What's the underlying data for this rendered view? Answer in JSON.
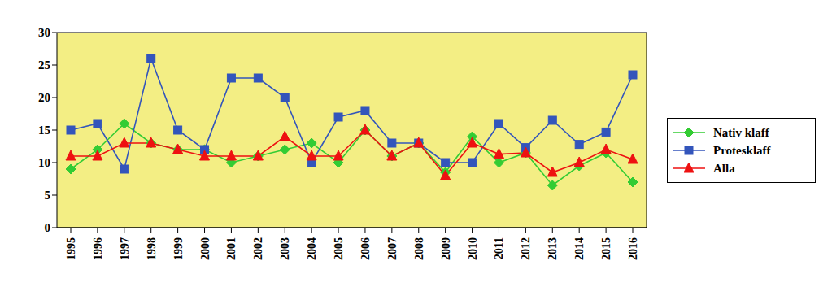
{
  "chart_data": {
    "type": "line",
    "categories": [
      "1995",
      "1996",
      "1997",
      "1998",
      "1999",
      "2000",
      "2001",
      "2002",
      "2003",
      "2004",
      "2005",
      "2006",
      "2007",
      "2008",
      "2009",
      "2010",
      "2011",
      "2012",
      "2013",
      "2014",
      "2015",
      "2016"
    ],
    "series": [
      {
        "name": "Nativ klaff",
        "color": "#33cc33",
        "marker": "diamond",
        "values": [
          9,
          12,
          16,
          13,
          12,
          12,
          10,
          11,
          12,
          13,
          10,
          15,
          11,
          13,
          8.5,
          14,
          10,
          11.5,
          6.5,
          9.5,
          11.5,
          7
        ]
      },
      {
        "name": "Protesklaff",
        "color": "#3355bb",
        "marker": "square",
        "values": [
          15,
          16,
          9,
          26,
          15,
          12,
          23,
          23,
          20,
          10,
          17,
          18,
          13,
          13,
          10,
          10,
          16,
          12.3,
          16.5,
          12.8,
          14.7,
          23.5
        ]
      },
      {
        "name": "Alla",
        "color": "#ee1111",
        "marker": "triangle",
        "values": [
          11,
          11,
          13,
          13,
          12,
          11,
          11,
          11,
          14,
          11,
          11,
          15,
          11,
          13,
          8,
          13,
          11.3,
          11.5,
          8.5,
          10,
          12,
          10.5
        ]
      }
    ],
    "ylim": [
      0,
      30
    ],
    "yticks": [
      0,
      5,
      10,
      15,
      20,
      25,
      30
    ],
    "grid": true,
    "legend": "right"
  }
}
